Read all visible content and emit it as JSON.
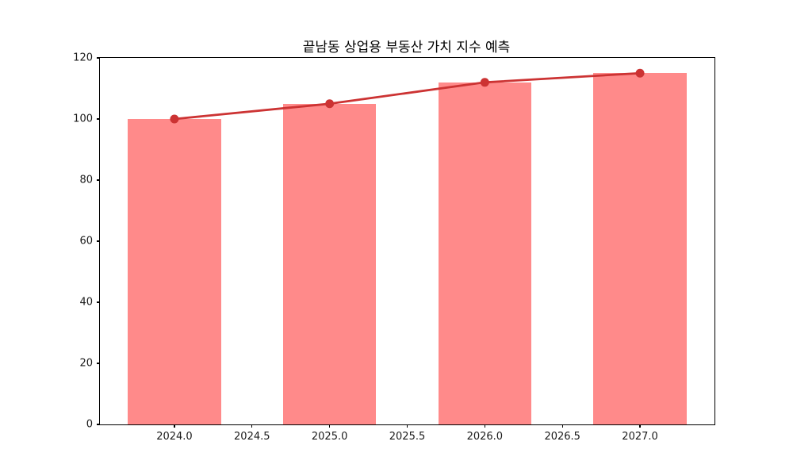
{
  "chart_data": {
    "type": "bar",
    "title": "끝남동 상업용 부동산 가치 지수 예측",
    "xlabel": "",
    "ylabel": "",
    "categories": [
      2024,
      2025,
      2026,
      2027
    ],
    "series": [
      {
        "name": "value-index-bars",
        "type": "bar",
        "values": [
          100,
          105,
          112,
          115
        ],
        "color": "#ff8a8a"
      },
      {
        "name": "value-index-line",
        "type": "line",
        "values": [
          100,
          105,
          112,
          115
        ],
        "color": "#cc3333",
        "marker": "circle"
      }
    ],
    "bar_width": 0.6,
    "xlim": [
      2023.52,
      2027.48
    ],
    "ylim": [
      0,
      120
    ],
    "x_ticks": [
      2024.0,
      2024.5,
      2025.0,
      2025.5,
      2026.0,
      2026.5,
      2027.0
    ],
    "x_tick_labels": [
      "2024.0",
      "2024.5",
      "2025.0",
      "2025.5",
      "2026.0",
      "2026.5",
      "2027.0"
    ],
    "y_ticks": [
      0,
      20,
      40,
      60,
      80,
      100,
      120
    ],
    "y_tick_labels": [
      "0",
      "20",
      "40",
      "60",
      "80",
      "100",
      "120"
    ],
    "grid": false,
    "legend": null
  }
}
